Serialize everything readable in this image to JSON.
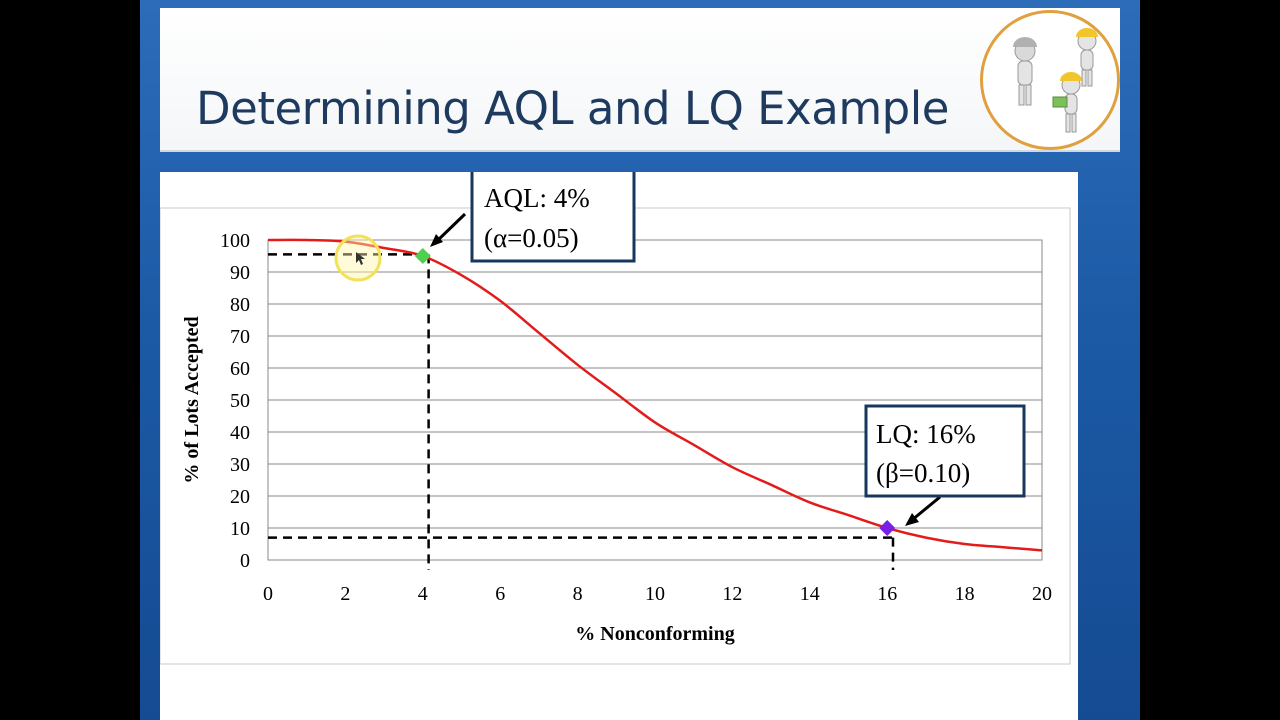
{
  "slide": {
    "title": "Determining AQL and LQ Example"
  },
  "colors": {
    "title_text": "#1f3a5f",
    "curve": "#e31b1b",
    "aql_marker": "#4fce4f",
    "lq_marker": "#7a1fe6",
    "callout_border": "#17375e"
  },
  "callouts": {
    "aql_line1": "AQL: 4%",
    "aql_line2": "(α=0.05)",
    "lq_line1": "LQ: 16%",
    "lq_line2": "(β=0.10)"
  },
  "chart_data": {
    "type": "line",
    "title": "",
    "xlabel": "% Nonconforming",
    "ylabel": "% of Lots Accepted",
    "xlim": [
      0,
      20
    ],
    "ylim": [
      0,
      100
    ],
    "x_ticks": [
      0,
      2,
      4,
      6,
      8,
      10,
      12,
      14,
      16,
      18,
      20
    ],
    "y_ticks": [
      0,
      10,
      20,
      30,
      40,
      50,
      60,
      70,
      80,
      90,
      100
    ],
    "grid": "horizontal",
    "series": [
      {
        "x": [
          0,
          1,
          2,
          3,
          4,
          5,
          6,
          7,
          8,
          9,
          10,
          11,
          12,
          13,
          14,
          15,
          16,
          17,
          18,
          19,
          20
        ],
        "y": [
          100,
          100,
          99.5,
          97.5,
          95,
          89,
          81,
          71,
          61,
          52,
          43,
          36,
          29,
          23.5,
          18,
          14,
          10,
          7,
          5,
          4,
          3
        ]
      }
    ],
    "points": [
      {
        "label": "AQL",
        "x": 4,
        "y": 95
      },
      {
        "label": "LQ",
        "x": 16,
        "y": 10
      }
    ],
    "reference_lines": [
      {
        "x": 4.15,
        "y": 95.5
      },
      {
        "x": 16.15,
        "y": 7
      }
    ]
  }
}
